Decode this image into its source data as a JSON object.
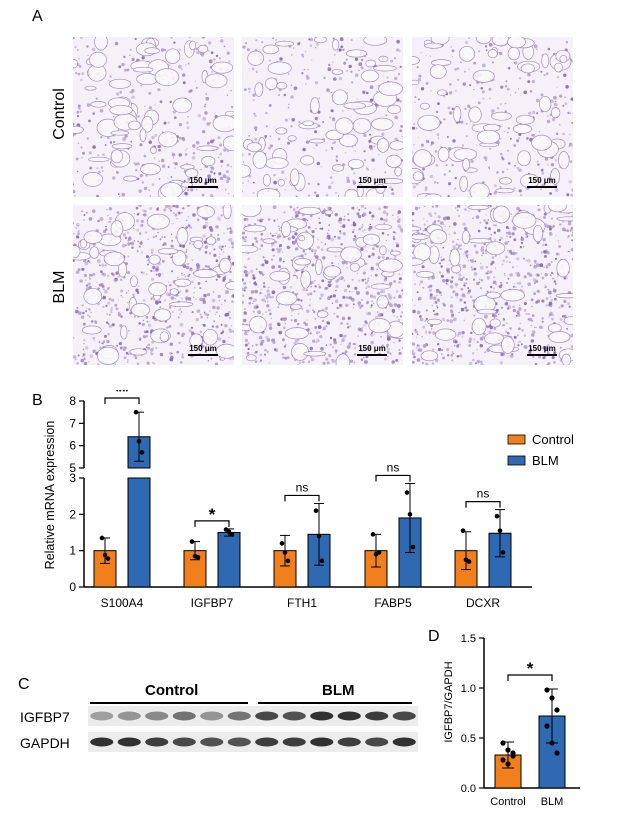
{
  "panels": {
    "a": "A",
    "b": "B",
    "c": "C",
    "d": "D"
  },
  "panel_a": {
    "row_labels": [
      "Control",
      "BLM"
    ],
    "scale_bar": "150 μm"
  },
  "chart_data": [
    {
      "type": "bar",
      "panel": "B",
      "ylabel": "Relative mRNA expression",
      "categories": [
        "S100A4",
        "IGFBP7",
        "FTH1",
        "FABP5",
        "DCXR"
      ],
      "y_axis_broken": true,
      "ylim_lower": [
        0,
        3
      ],
      "ylim_upper": [
        5,
        8
      ],
      "yticks_lower": [
        0,
        1,
        2,
        3
      ],
      "yticks_upper": [
        5,
        6,
        7,
        8
      ],
      "legend_position": "right",
      "series": [
        {
          "name": "Control",
          "color": "#f07f1c",
          "values": [
            1.0,
            1.0,
            1.0,
            1.0,
            1.0
          ],
          "error": [
            0.35,
            0.25,
            0.42,
            0.45,
            0.52
          ],
          "points": [
            [
              1.35,
              0.88,
              0.78
            ],
            [
              1.25,
              0.85,
              0.82
            ],
            [
              1.2,
              0.95,
              0.72
            ],
            [
              1.45,
              0.9,
              0.95
            ],
            [
              1.55,
              0.75,
              0.7
            ]
          ]
        },
        {
          "name": "BLM",
          "color": "#2e69b1",
          "values": [
            6.4,
            1.5,
            1.45,
            1.9,
            1.48
          ],
          "error": [
            1.1,
            0.1,
            0.85,
            0.95,
            0.65
          ],
          "points": [
            [
              7.5,
              6.2,
              5.7
            ],
            [
              1.58,
              1.52,
              1.45
            ],
            [
              2.1,
              1.4,
              0.72
            ],
            [
              2.6,
              2.0,
              1.1
            ],
            [
              1.95,
              1.55,
              0.95
            ]
          ]
        }
      ],
      "significance": [
        "**",
        "*",
        "ns",
        "ns",
        "ns"
      ]
    },
    {
      "type": "bar",
      "panel": "D",
      "ylabel": "IGFBP7/GAPDH",
      "categories": [
        "Control",
        "BLM"
      ],
      "ylim": [
        0,
        1.5
      ],
      "yticks": [
        "0.0",
        "0.5",
        "1.0",
        "1.5"
      ],
      "values": [
        0.33,
        0.72
      ],
      "error": [
        0.13,
        0.27
      ],
      "colors": [
        "#f07f1c",
        "#2e69b1"
      ],
      "points": [
        [
          0.45,
          0.38,
          0.32,
          0.28,
          0.24,
          0.35
        ],
        [
          0.98,
          0.9,
          0.78,
          0.62,
          0.45,
          0.35
        ]
      ],
      "significance": "*"
    }
  ],
  "panel_c": {
    "group_labels": [
      "Control",
      "BLM"
    ],
    "row_labels": [
      "IGFBP7",
      "GAPDH"
    ],
    "lanes_per_group": 6,
    "igfbp7_intensity": [
      0.35,
      0.4,
      0.45,
      0.55,
      0.4,
      0.55,
      0.75,
      0.7,
      0.85,
      0.85,
      0.8,
      0.75
    ],
    "gapdh_intensity": [
      0.85,
      0.85,
      0.8,
      0.75,
      0.7,
      0.7,
      0.8,
      0.8,
      0.85,
      0.8,
      0.75,
      0.85
    ]
  }
}
